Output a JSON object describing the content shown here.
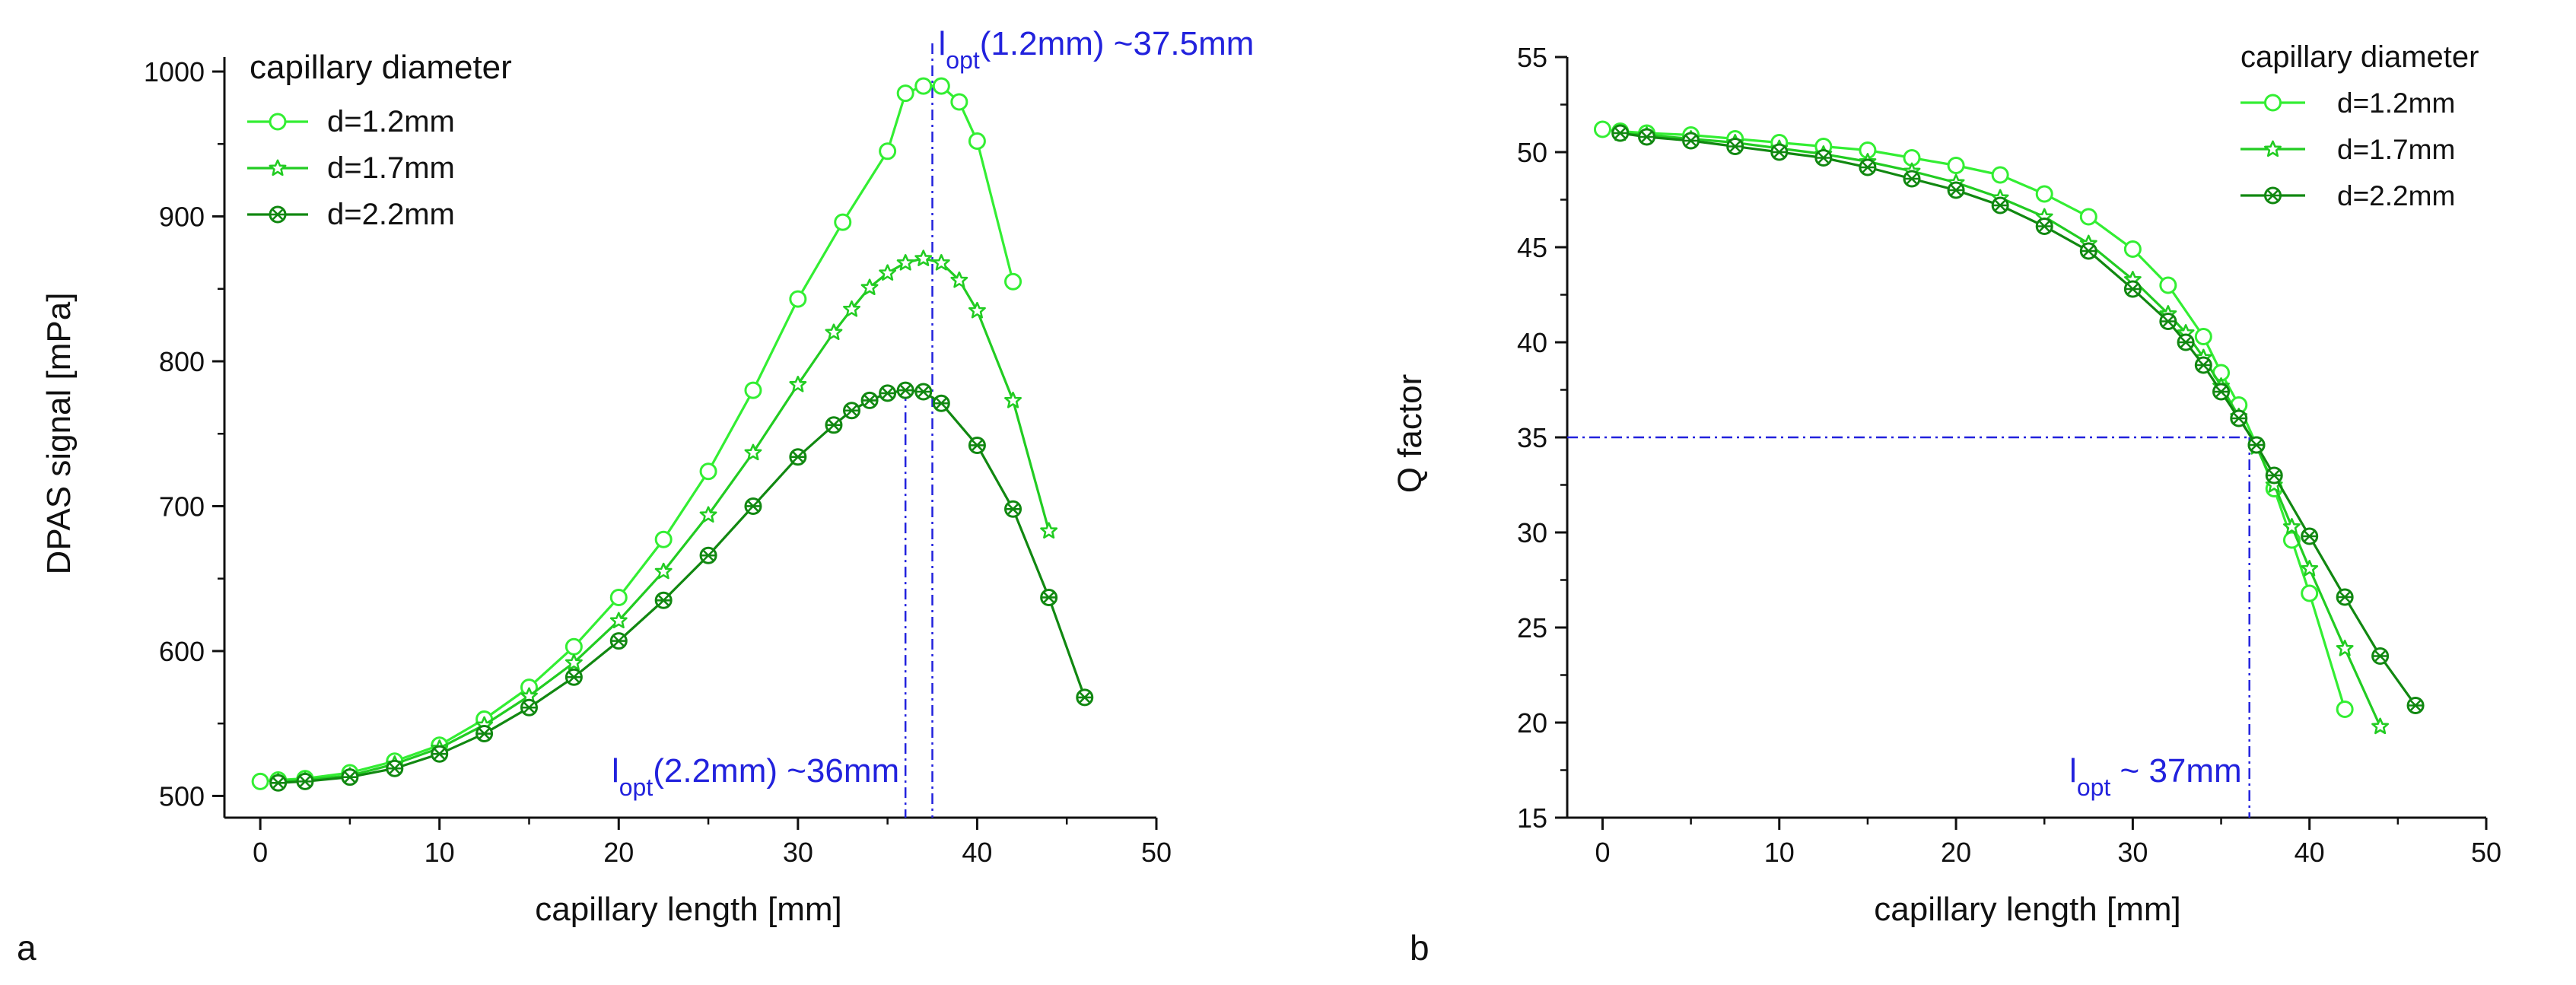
{
  "chart_data": [
    {
      "panel_label": "a",
      "type": "line",
      "title": "",
      "xlabel": "capillary length [mm]",
      "ylabel": "DPAS signal [mPa]",
      "xlim": [
        -2,
        50
      ],
      "ylim": [
        485,
        1010
      ],
      "xticks": [
        0,
        10,
        20,
        30,
        40,
        50
      ],
      "yticks": [
        500,
        600,
        700,
        800,
        900,
        1000
      ],
      "grid": false,
      "legend": {
        "title": "capillary diameter",
        "position": "top-left"
      },
      "series": [
        {
          "name": "d=1.2mm",
          "marker": "circle",
          "color": "#33ee33",
          "x": [
            0,
            1,
            2.5,
            5,
            7.5,
            10,
            12.5,
            15,
            17.5,
            20,
            22.5,
            25,
            27.5,
            30,
            32.5,
            35,
            36,
            37,
            38,
            39,
            40,
            42
          ],
          "y": [
            510,
            511,
            512,
            516,
            524,
            535,
            553,
            575,
            603,
            637,
            677,
            724,
            780,
            843,
            896,
            945,
            985,
            990,
            990,
            979,
            952,
            855
          ]
        },
        {
          "name": "d=1.7mm",
          "marker": "star",
          "color": "#22cc22",
          "x": [
            1,
            2.5,
            5,
            7.5,
            10,
            12.5,
            15,
            17.5,
            20,
            22.5,
            25,
            27.5,
            30,
            32,
            33,
            34,
            35,
            36,
            37,
            38,
            39,
            40,
            42,
            44
          ],
          "y": [
            510,
            511,
            514,
            522,
            533,
            549,
            569,
            592,
            621,
            655,
            694,
            737,
            784,
            820,
            836,
            851,
            861,
            868,
            871,
            868,
            856,
            835,
            773,
            683
          ]
        },
        {
          "name": "d=2.2mm",
          "marker": "crossed-circle",
          "color": "#118811",
          "x": [
            1,
            2.5,
            5,
            7.5,
            10,
            12.5,
            15,
            17.5,
            20,
            22.5,
            25,
            27.5,
            30,
            32,
            33,
            34,
            35,
            36,
            37,
            38,
            40,
            42,
            44,
            46
          ],
          "y": [
            509,
            510,
            513,
            519,
            529,
            543,
            561,
            582,
            607,
            635,
            666,
            700,
            734,
            756,
            766,
            773,
            778,
            780,
            779,
            771,
            742,
            698,
            637,
            568
          ]
        }
      ],
      "annotations": [
        {
          "prefix": "l",
          "sub": "opt",
          "text": "(1.2mm) ~37.5mm",
          "x": 37.5
        },
        {
          "prefix": "l",
          "sub": "opt",
          "text": "(2.2mm) ~36mm",
          "x": 36
        }
      ]
    },
    {
      "panel_label": "b",
      "type": "line",
      "title": "",
      "xlabel": "capillary length [mm]",
      "ylabel": "Q factor",
      "xlim": [
        -2,
        50
      ],
      "ylim": [
        15,
        55
      ],
      "xticks": [
        0,
        10,
        20,
        30,
        40,
        50
      ],
      "yticks": [
        15,
        20,
        25,
        30,
        35,
        40,
        45,
        50,
        55
      ],
      "grid": false,
      "legend": {
        "title": "capillary diameter",
        "position": "top-right"
      },
      "series": [
        {
          "name": "d=1.2mm",
          "marker": "circle",
          "color": "#33ee33",
          "x": [
            0,
            1,
            2.5,
            5,
            7.5,
            10,
            12.5,
            15,
            17.5,
            20,
            22.5,
            25,
            27.5,
            30,
            32,
            34,
            35,
            36,
            37,
            38,
            39,
            40,
            42
          ],
          "y": [
            51.2,
            51.1,
            51.0,
            50.9,
            50.7,
            50.5,
            50.3,
            50.1,
            49.7,
            49.3,
            48.8,
            47.8,
            46.6,
            44.9,
            43.0,
            40.3,
            38.4,
            36.7,
            34.6,
            32.3,
            29.6,
            26.8,
            20.7
          ]
        },
        {
          "name": "d=1.7mm",
          "marker": "star",
          "color": "#22cc22",
          "x": [
            1,
            2.5,
            5,
            7.5,
            10,
            12.5,
            15,
            17.5,
            20,
            22.5,
            25,
            27.5,
            30,
            32,
            33,
            34,
            35,
            36,
            37,
            38,
            39,
            40,
            42,
            44
          ],
          "y": [
            51.0,
            50.9,
            50.7,
            50.5,
            50.2,
            49.9,
            49.5,
            49.0,
            48.4,
            47.6,
            46.6,
            45.2,
            43.3,
            41.5,
            40.5,
            39.2,
            37.7,
            36.1,
            34.5,
            32.5,
            30.3,
            28.1,
            23.9,
            19.8
          ]
        },
        {
          "name": "d=2.2mm",
          "marker": "crossed-circle",
          "color": "#118811",
          "x": [
            1,
            2.5,
            5,
            7.5,
            10,
            12.5,
            15,
            17.5,
            20,
            22.5,
            25,
            27.5,
            30,
            32,
            33,
            34,
            35,
            36,
            37,
            38,
            40,
            42,
            44,
            46
          ],
          "y": [
            51.0,
            50.8,
            50.6,
            50.3,
            50.0,
            49.7,
            49.2,
            48.6,
            48.0,
            47.2,
            46.1,
            44.8,
            42.8,
            41.1,
            40.0,
            38.8,
            37.4,
            36.0,
            34.6,
            33.0,
            29.8,
            26.6,
            23.5,
            20.9
          ]
        }
      ],
      "annotations": [
        {
          "prefix": "l",
          "sub": "opt",
          "text": " ~ 37mm",
          "x": 36.6,
          "y": 35
        }
      ]
    }
  ]
}
